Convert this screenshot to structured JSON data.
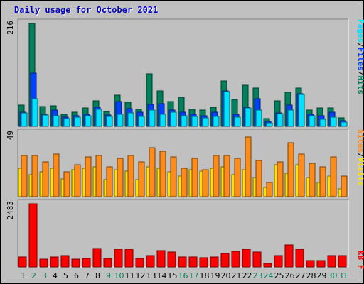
{
  "page": {
    "title": "Daily usage for October 2021"
  },
  "chart_data": [
    {
      "type": "bar",
      "panel": "top",
      "categories": [
        "1",
        "2",
        "3",
        "4",
        "5",
        "6",
        "7",
        "8",
        "9",
        "10",
        "11",
        "12",
        "13",
        "14",
        "15",
        "16",
        "17",
        "18",
        "19",
        "20",
        "21",
        "22",
        "23",
        "24",
        "25",
        "26",
        "27",
        "28",
        "29",
        "30",
        "31"
      ],
      "ymax_label": "216",
      "ylim": [
        0,
        216
      ],
      "series": [
        {
          "name": "Hits",
          "color": "#00805c",
          "values": [
            45,
            216,
            42,
            43,
            26,
            30,
            38,
            54,
            32,
            65,
            51,
            36,
            110,
            75,
            52,
            61,
            36,
            35,
            40,
            96,
            56,
            86,
            81,
            16,
            53,
            71,
            81,
            34,
            39,
            38,
            18
          ]
        },
        {
          "name": "Files",
          "color": "#0042ff",
          "values": [
            30,
            111,
            26,
            35,
            20,
            22,
            25,
            40,
            24,
            52,
            37,
            30,
            46,
            48,
            35,
            30,
            25,
            23,
            30,
            74,
            26,
            40,
            58,
            11,
            28,
            44,
            69,
            25,
            22,
            30,
            12
          ]
        },
        {
          "name": "Pages",
          "color": "#00e0ff",
          "values": [
            28,
            58,
            24,
            23,
            17,
            19,
            23,
            36,
            21,
            26,
            28,
            21,
            35,
            26,
            30,
            22,
            21,
            18,
            21,
            73,
            20,
            39,
            35,
            8,
            27,
            34,
            67,
            23,
            15,
            19,
            9
          ]
        }
      ],
      "axis_label_parts": [
        "Pages",
        "/",
        "Files",
        "/",
        "Hits"
      ]
    },
    {
      "type": "bar",
      "panel": "middle",
      "categories": [
        "1",
        "2",
        "3",
        "4",
        "5",
        "6",
        "7",
        "8",
        "9",
        "10",
        "11",
        "12",
        "13",
        "14",
        "15",
        "16",
        "17",
        "18",
        "19",
        "20",
        "21",
        "22",
        "23",
        "24",
        "25",
        "26",
        "27",
        "28",
        "29",
        "30",
        "31"
      ],
      "ymax_label": "49",
      "ylim": [
        0,
        49
      ],
      "series": [
        {
          "name": "Visits",
          "color": "#ffe000",
          "values": [
            22,
            17,
            19,
            22,
            14,
            21,
            22,
            23,
            13,
            21,
            20,
            13,
            23,
            22,
            19,
            16,
            21,
            20,
            22,
            23,
            17,
            21,
            15,
            7,
            25,
            18,
            25,
            15,
            11,
            16,
            6
          ]
        },
        {
          "name": "Sites",
          "color": "#ff8c1a",
          "values": [
            32,
            32,
            27,
            33,
            19,
            25,
            31,
            32,
            23,
            30,
            32,
            27,
            38,
            35,
            31,
            22,
            30,
            21,
            32,
            32,
            30,
            46,
            28,
            11,
            27,
            42,
            33,
            26,
            23,
            31,
            16
          ]
        }
      ],
      "axis_label_parts": [
        "Sites",
        "/",
        "Visits"
      ]
    },
    {
      "type": "bar",
      "panel": "bottom",
      "categories": [
        "1",
        "2",
        "3",
        "4",
        "5",
        "6",
        "7",
        "8",
        "9",
        "10",
        "11",
        "12",
        "13",
        "14",
        "15",
        "16",
        "17",
        "18",
        "19",
        "20",
        "21",
        "22",
        "23",
        "24",
        "25",
        "26",
        "27",
        "28",
        "29",
        "30",
        "31"
      ],
      "ymax_label": "2483",
      "ylim": [
        0,
        2483
      ],
      "series": [
        {
          "name": "kB F",
          "color": "#ff0000",
          "values": [
            402,
            2483,
            300,
            386,
            460,
            296,
            343,
            713,
            332,
            696,
            707,
            322,
            435,
            655,
            588,
            382,
            383,
            365,
            402,
            541,
            603,
            710,
            577,
            141,
            460,
            876,
            687,
            252,
            240,
            433,
            439
          ]
        }
      ],
      "axis_label_parts": [
        "kB F"
      ]
    }
  ],
  "x_axis": {
    "labels": [
      "1",
      "2",
      "3",
      "4",
      "5",
      "6",
      "7",
      "8",
      "9",
      "10",
      "11",
      "12",
      "13",
      "14",
      "15",
      "16",
      "17",
      "18",
      "19",
      "20",
      "21",
      "22",
      "23",
      "24",
      "25",
      "26",
      "27",
      "28",
      "29",
      "30",
      "31"
    ],
    "weekend_days": [
      "2",
      "3",
      "9",
      "10",
      "16",
      "17",
      "23",
      "24",
      "30",
      "31"
    ],
    "weekday_color": "#000000",
    "weekend_color": "#00805c"
  }
}
